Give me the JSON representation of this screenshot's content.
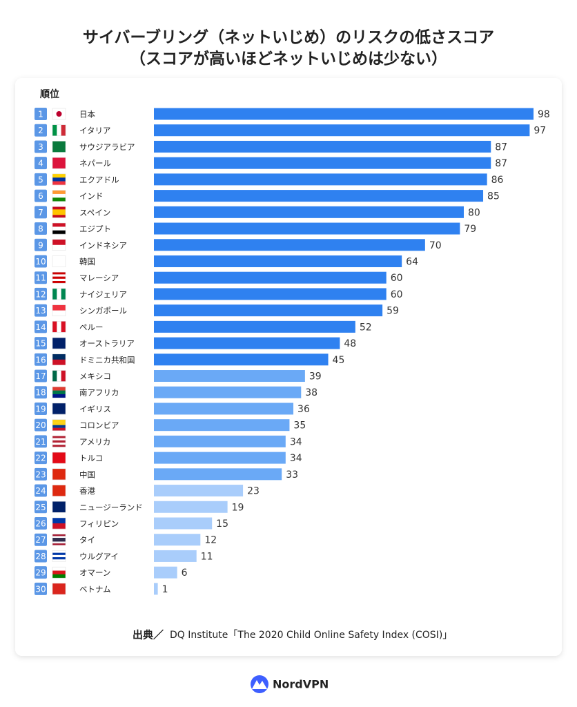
{
  "chart_data": {
    "type": "bar",
    "title": "サイバーブリング（ネットいじめ）のリスクの低さスコア",
    "subtitle": "（スコアが高いほどネットいじめは少ない）",
    "rank_header": "順位",
    "ranks": [
      1,
      2,
      3,
      4,
      5,
      6,
      7,
      8,
      9,
      10,
      11,
      12,
      13,
      14,
      15,
      16,
      17,
      18,
      19,
      20,
      21,
      22,
      23,
      24,
      25,
      26,
      27,
      28,
      29,
      30
    ],
    "categories": [
      "日本",
      "イタリア",
      "サウジアラビア",
      "ネパール",
      "エクアドル",
      "インド",
      "スペイン",
      "エジプト",
      "インドネシア",
      "韓国",
      "マレーシア",
      "ナイジェリア",
      "シンガポール",
      "ペルー",
      "オーストラリア",
      "ドミニカ共和国",
      "メキシコ",
      "南アフリカ",
      "イギリス",
      "コロンビア",
      "アメリカ",
      "トルコ",
      "中国",
      "香港",
      "ニュージーランド",
      "フィリピン",
      "タイ",
      "ウルグアイ",
      "オマーン",
      "ベトナム"
    ],
    "values": [
      98,
      97,
      87,
      87,
      86,
      85,
      80,
      79,
      70,
      64,
      60,
      60,
      59,
      52,
      48,
      45,
      39,
      38,
      36,
      35,
      34,
      34,
      33,
      23,
      19,
      15,
      12,
      11,
      6,
      1
    ],
    "colors": [
      "#2f81f0",
      "#2f81f0",
      "#2f81f0",
      "#2f81f0",
      "#2f81f0",
      "#2f81f0",
      "#2f81f0",
      "#2f81f0",
      "#2f81f0",
      "#2f81f0",
      "#2f81f0",
      "#2f81f0",
      "#2f81f0",
      "#2f81f0",
      "#2f81f0",
      "#2f81f0",
      "#6aa9f6",
      "#6aa9f6",
      "#6aa9f6",
      "#6aa9f6",
      "#6aa9f6",
      "#6aa9f6",
      "#6aa9f6",
      "#a9cdfb",
      "#a9cdfb",
      "#a9cdfb",
      "#a9cdfb",
      "#a9cdfb",
      "#a9cdfb",
      "#a9cdfb"
    ],
    "source_label": "出典／",
    "source": "DQ Institute「The 2020 Child Online Safety Index (COSI)」",
    "brand": "NordVPN"
  }
}
